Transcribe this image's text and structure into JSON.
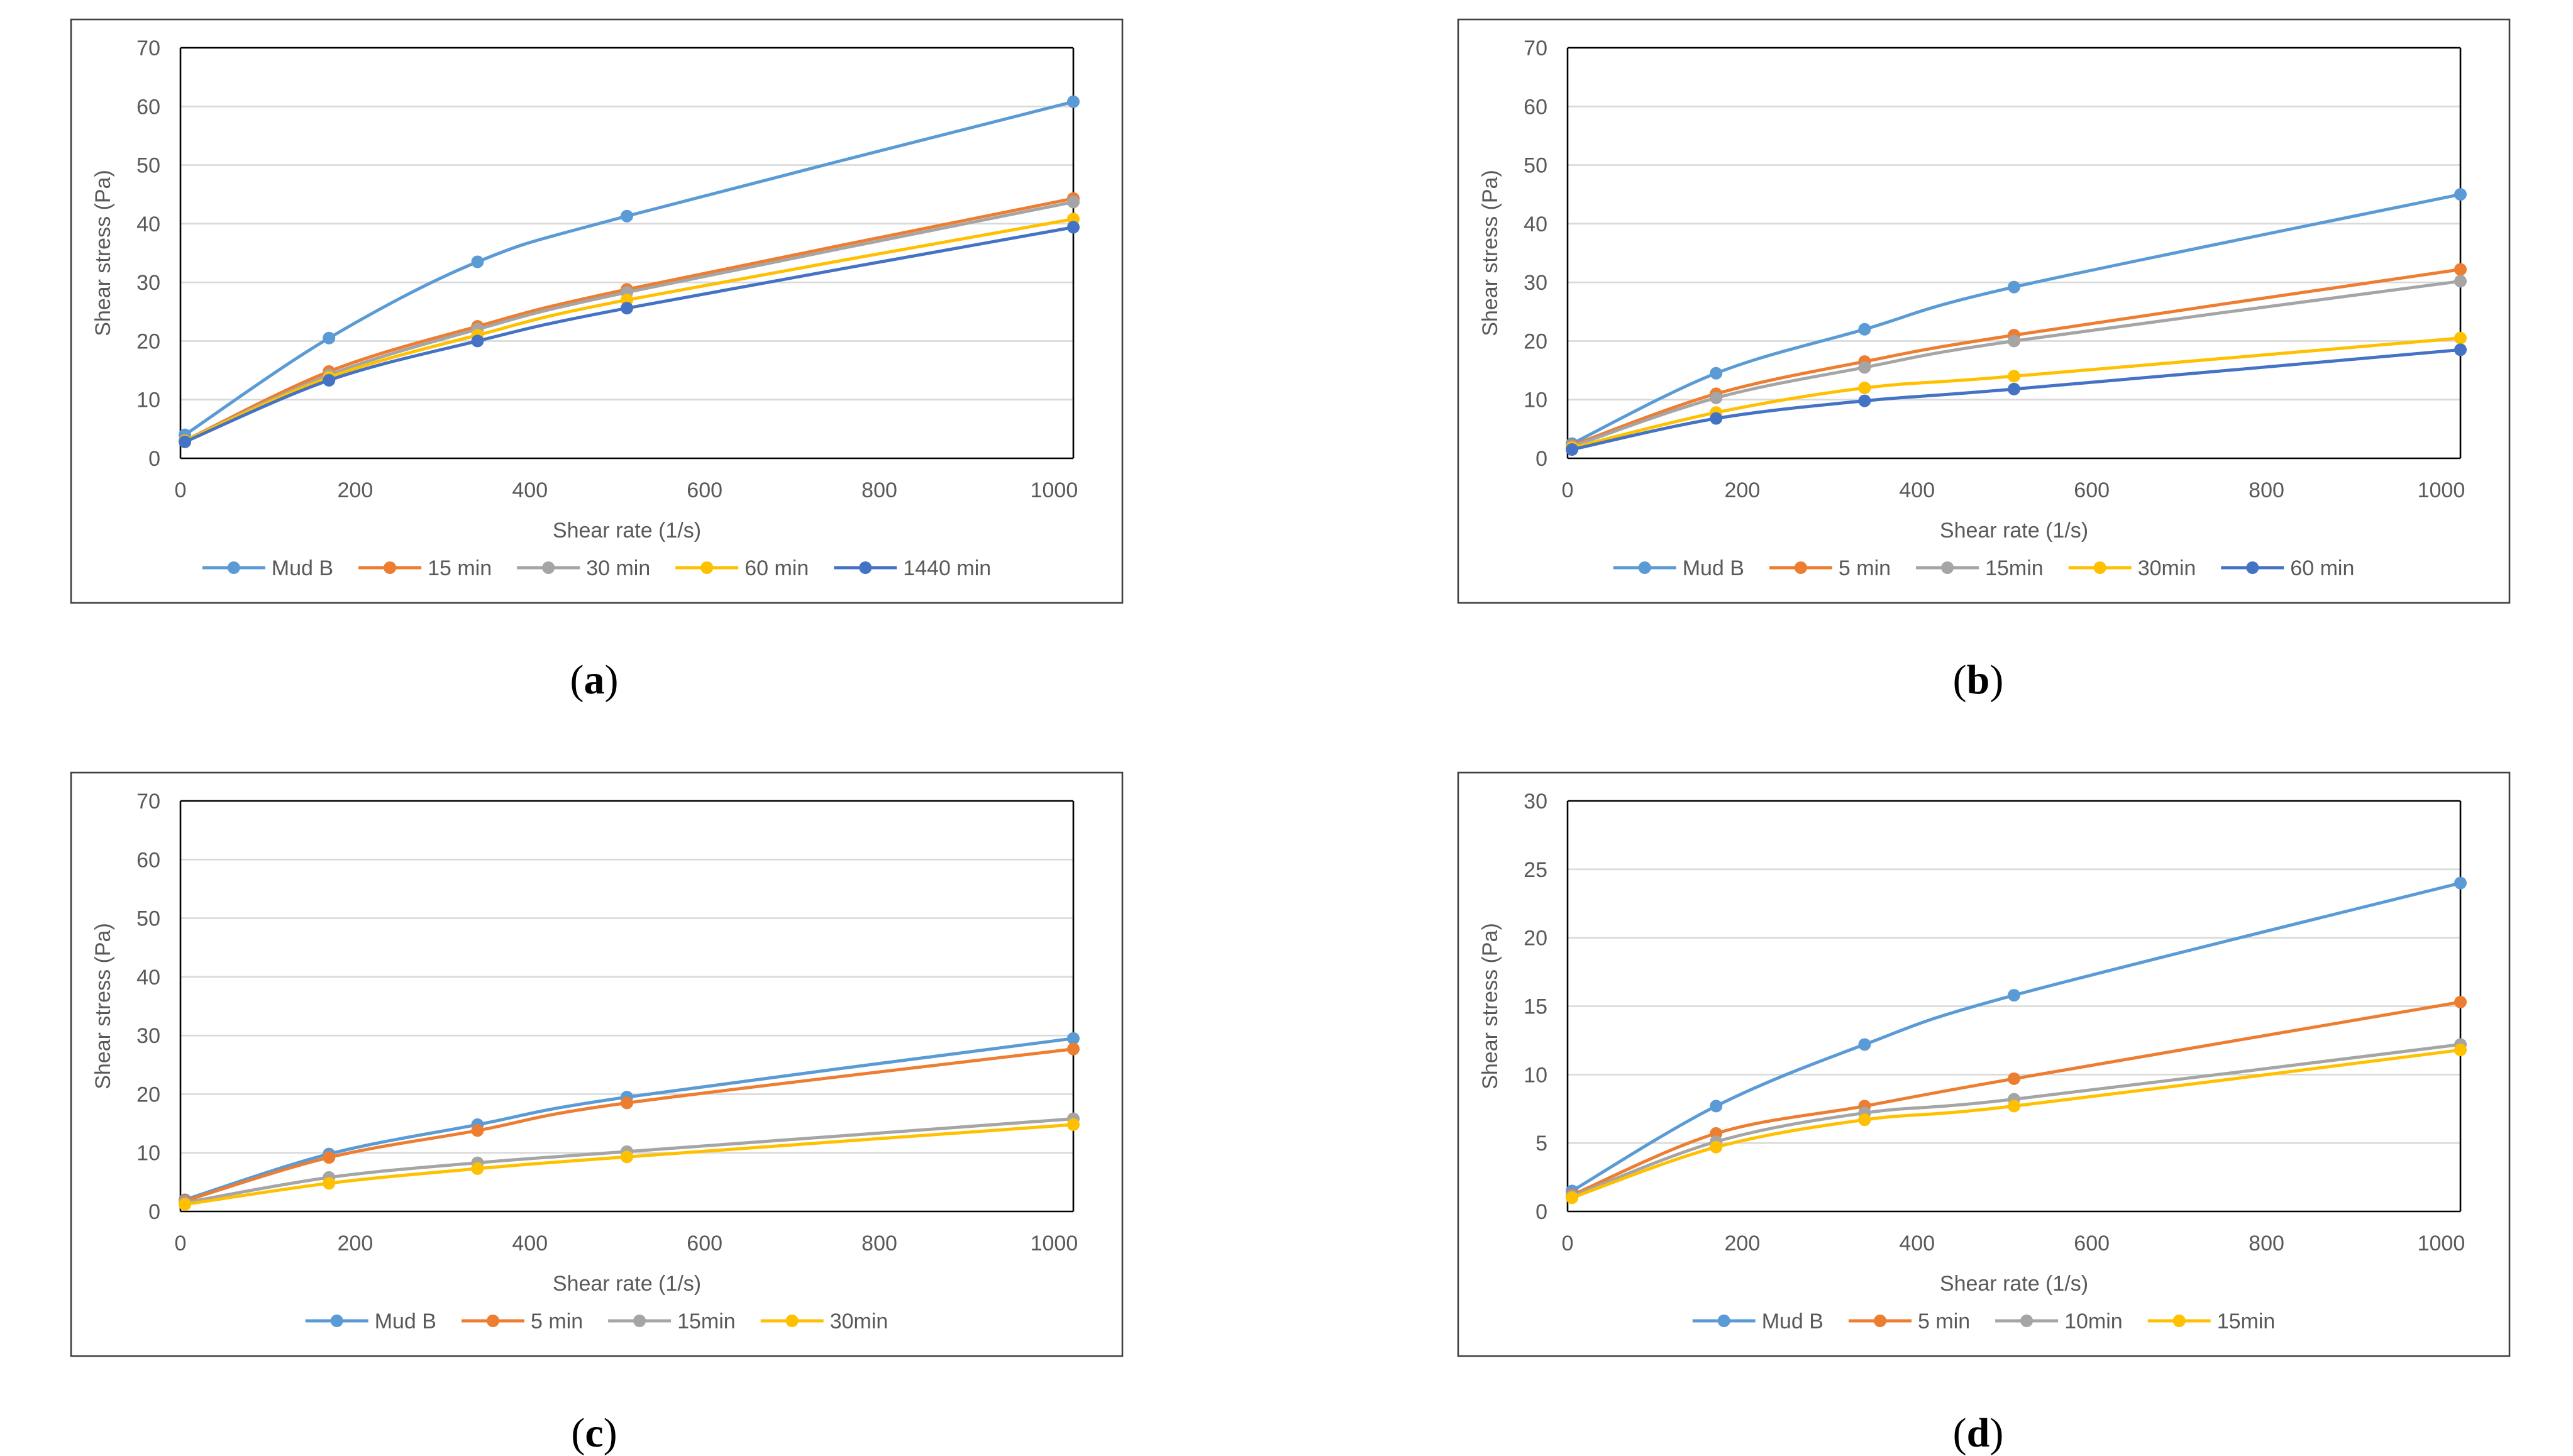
{
  "chart_data": [
    {
      "panel": "a",
      "type": "line",
      "xlabel": "Shear rate (1/s)",
      "ylabel": "Shear stress (Pa)",
      "xlim": [
        0,
        1022
      ],
      "ylim": [
        0,
        70
      ],
      "xticks": [
        0,
        200,
        400,
        600,
        800,
        1000
      ],
      "yticks": [
        0,
        10,
        20,
        30,
        40,
        50,
        60,
        70
      ],
      "grid": true,
      "legend": "bottom",
      "x": [
        5.1,
        170,
        340,
        511,
        1022
      ],
      "series": [
        {
          "name": "Mud B",
          "color": "#5B9BD5",
          "values": [
            4,
            20.5,
            33.5,
            41.3,
            60.8
          ]
        },
        {
          "name": "15 min",
          "color": "#ED7D31",
          "values": [
            3,
            14.8,
            22.5,
            28.8,
            44.3
          ]
        },
        {
          "name": "30 min",
          "color": "#A5A5A5",
          "values": [
            3,
            14.2,
            22,
            28.3,
            43.7
          ]
        },
        {
          "name": "60 min",
          "color": "#FFC000",
          "values": [
            3,
            13.8,
            21,
            27,
            40.8
          ]
        },
        {
          "name": "1440 min",
          "color": "#4472C4",
          "values": [
            2.8,
            13.3,
            20,
            25.6,
            39.4
          ]
        }
      ]
    },
    {
      "panel": "b",
      "type": "line",
      "xlabel": "Shear rate (1/s)",
      "ylabel": "Shear stress (Pa)",
      "xlim": [
        0,
        1022
      ],
      "ylim": [
        0,
        70
      ],
      "xticks": [
        0,
        200,
        400,
        600,
        800,
        1000
      ],
      "yticks": [
        0,
        10,
        20,
        30,
        40,
        50,
        60,
        70
      ],
      "grid": true,
      "legend": "bottom",
      "x": [
        5.1,
        170,
        340,
        511,
        1022
      ],
      "series": [
        {
          "name": "Mud B",
          "color": "#5B9BD5",
          "values": [
            2.5,
            14.5,
            22,
            29.2,
            45
          ]
        },
        {
          "name": "5 min",
          "color": "#ED7D31",
          "values": [
            2.2,
            11,
            16.5,
            21,
            32.2
          ]
        },
        {
          "name": "15min",
          "color": "#A5A5A5",
          "values": [
            2,
            10.3,
            15.5,
            20,
            30.2
          ]
        },
        {
          "name": "30min",
          "color": "#FFC000",
          "values": [
            1.8,
            7.8,
            12,
            14,
            20.5
          ]
        },
        {
          "name": "60 min",
          "color": "#4472C4",
          "values": [
            1.5,
            6.8,
            9.8,
            11.8,
            18.5
          ]
        }
      ]
    },
    {
      "panel": "c",
      "type": "line",
      "xlabel": "Shear rate (1/s)",
      "ylabel": "Shear stress (Pa)",
      "xlim": [
        0,
        1022
      ],
      "ylim": [
        0,
        70
      ],
      "xticks": [
        0,
        200,
        400,
        600,
        800,
        1000
      ],
      "yticks": [
        0,
        10,
        20,
        30,
        40,
        50,
        60,
        70
      ],
      "grid": true,
      "legend": "bottom",
      "x": [
        5.1,
        170,
        340,
        511,
        1022
      ],
      "series": [
        {
          "name": "Mud B",
          "color": "#5B9BD5",
          "values": [
            2,
            9.8,
            14.8,
            19.5,
            29.5
          ]
        },
        {
          "name": "5 min",
          "color": "#ED7D31",
          "values": [
            1.8,
            9.2,
            13.8,
            18.5,
            27.7
          ]
        },
        {
          "name": "15min",
          "color": "#A5A5A5",
          "values": [
            1.5,
            5.8,
            8.3,
            10.2,
            15.8
          ]
        },
        {
          "name": "30min",
          "color": "#FFC000",
          "values": [
            1.2,
            4.8,
            7.3,
            9.3,
            14.8
          ]
        }
      ]
    },
    {
      "panel": "d",
      "type": "line",
      "xlabel": "Shear rate (1/s)",
      "ylabel": "Shear stress (Pa)",
      "xlim": [
        0,
        1022
      ],
      "ylim": [
        0,
        30
      ],
      "xticks": [
        0,
        200,
        400,
        600,
        800,
        1000
      ],
      "yticks": [
        0,
        5,
        10,
        15,
        20,
        25,
        30
      ],
      "grid": true,
      "legend": "bottom",
      "x": [
        5.1,
        170,
        340,
        511,
        1022
      ],
      "series": [
        {
          "name": "Mud B",
          "color": "#5B9BD5",
          "values": [
            1.5,
            7.7,
            12.2,
            15.8,
            24
          ]
        },
        {
          "name": "5 min",
          "color": "#ED7D31",
          "values": [
            1.2,
            5.7,
            7.7,
            9.7,
            15.3
          ]
        },
        {
          "name": "10min",
          "color": "#A5A5A5",
          "values": [
            1.1,
            5.1,
            7.2,
            8.2,
            12.2
          ]
        },
        {
          "name": "15min",
          "color": "#FFC000",
          "values": [
            1,
            4.7,
            6.7,
            7.7,
            11.8
          ]
        }
      ]
    }
  ],
  "panel_labels": {
    "a": {
      "open": "(",
      "letter": "a",
      "close": ")"
    },
    "b": {
      "open": "(",
      "letter": "b",
      "close": ")"
    },
    "c": {
      "open": "(",
      "letter": "c",
      "close": ")"
    },
    "d": {
      "open": "(",
      "letter": "d",
      "close": ")"
    }
  }
}
